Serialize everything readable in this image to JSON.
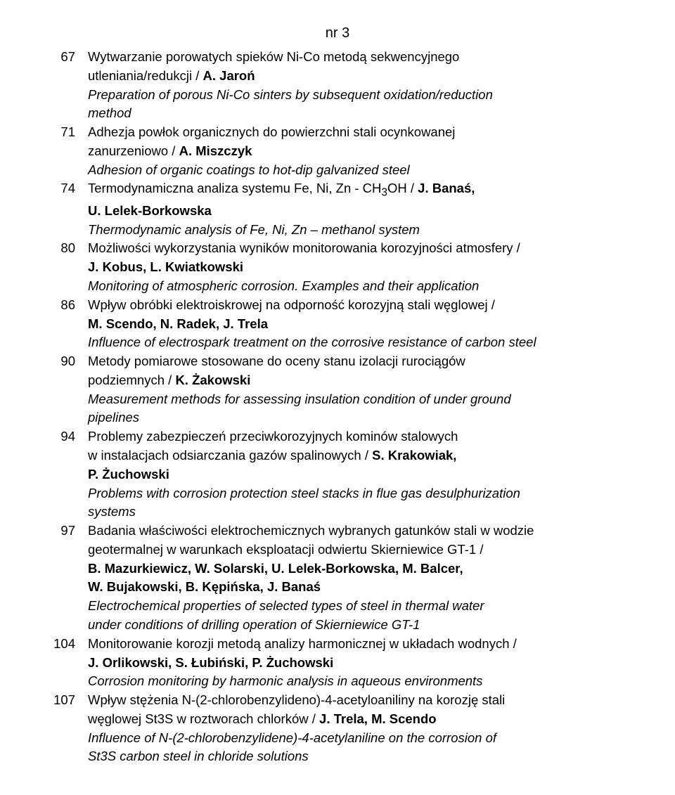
{
  "issue_label": "nr 3",
  "font": {
    "body_size_pt": 14,
    "title_size_pt": 15,
    "line_height": 1.34,
    "color_text": "#000000",
    "color_bg": "#ffffff"
  },
  "entries": [
    {
      "page": "67",
      "lines": [
        [
          {
            "t": "Wytwarzanie porowatych spieków Ni-Co metodą sekwencyjnego"
          }
        ],
        [
          {
            "t": "utleniania/redukcji / "
          },
          {
            "t": "A. Jaroń",
            "b": true
          }
        ],
        [
          {
            "t": "Preparation of porous Ni-Co sinters by subsequent oxidation/reduction",
            "i": true
          }
        ],
        [
          {
            "t": "method",
            "i": true
          }
        ]
      ]
    },
    {
      "page": "71",
      "lines": [
        [
          {
            "t": "Adhezja powłok organicznych do powierzchni stali ocynkowanej"
          }
        ],
        [
          {
            "t": "zanurzeniowo / "
          },
          {
            "t": "A. Miszczyk",
            "b": true
          }
        ],
        [
          {
            "t": "Adhesion of organic coatings to hot-dip galvanized steel",
            "i": true
          }
        ]
      ]
    },
    {
      "page": "74",
      "lines": [
        [
          {
            "t": "Termodynamiczna analiza systemu Fe, Ni, Zn - CH"
          },
          {
            "t": "3",
            "sub": true
          },
          {
            "t": "OH / "
          },
          {
            "t": "J. Banaś,",
            "b": true
          }
        ],
        [
          {
            "t": "U. Lelek-Borkowska",
            "b": true
          }
        ],
        [
          {
            "t": "Thermodynamic analysis of Fe, Ni, Zn – methanol system",
            "i": true
          }
        ]
      ]
    },
    {
      "page": "80",
      "lines": [
        [
          {
            "t": "Możliwości wykorzystania wyników monitorowania korozyjności atmosfery /"
          }
        ],
        [
          {
            "t": "J. Kobus, L. Kwiatkowski",
            "b": true
          }
        ],
        [
          {
            "t": "Monitoring of atmospheric corrosion. Examples and their application",
            "i": true
          }
        ]
      ]
    },
    {
      "page": "86",
      "lines": [
        [
          {
            "t": "Wpływ obróbki elektroiskrowej na odporność korozyjną stali węglowej /"
          }
        ],
        [
          {
            "t": "M. Scendo, N. Radek, J. Trela",
            "b": true
          }
        ],
        [
          {
            "t": "Influence of electrospark treatment on the corrosive resistance of carbon steel",
            "i": true
          }
        ]
      ]
    },
    {
      "page": "90",
      "lines": [
        [
          {
            "t": "Metody pomiarowe stosowane do oceny stanu izolacji rurociągów"
          }
        ],
        [
          {
            "t": "podziemnych / "
          },
          {
            "t": "K. Żakowski",
            "b": true
          }
        ],
        [
          {
            "t": "Measurement methods for assessing insulation condition of under ground",
            "i": true
          }
        ],
        [
          {
            "t": "pipelines",
            "i": true
          }
        ]
      ]
    },
    {
      "page": "94",
      "lines": [
        [
          {
            "t": "Problemy zabezpieczeń przeciwkorozyjnych kominów stalowych"
          }
        ],
        [
          {
            "t": "w instalacjach odsiarczania gazów spalinowych / "
          },
          {
            "t": "S. Krakowiak,",
            "b": true
          }
        ],
        [
          {
            "t": "P. Żuchowski",
            "b": true
          }
        ],
        [
          {
            "t": "Problems with corrosion protection steel stacks in flue gas desulphurization",
            "i": true
          }
        ],
        [
          {
            "t": "systems",
            "i": true
          }
        ]
      ]
    },
    {
      "page": "97",
      "lines": [
        [
          {
            "t": "Badania właściwości elektrochemicznych wybranych gatunków stali w wodzie"
          }
        ],
        [
          {
            "t": "geotermalnej w warunkach eksploatacji odwiertu Skierniewice GT-1 /"
          }
        ],
        [
          {
            "t": "B. Mazurkiewicz, W. Solarski, U. Lelek-Borkowska, M. Balcer,",
            "b": true
          }
        ],
        [
          {
            "t": "W. Bujakowski, B. Kępińska, J. Banaś",
            "b": true
          }
        ],
        [
          {
            "t": "Electrochemical properties of selected types of steel in thermal water",
            "i": true
          }
        ],
        [
          {
            "t": "under conditions of drilling operation of Skierniewice GT-1",
            "i": true
          }
        ]
      ]
    },
    {
      "page": "104",
      "lines": [
        [
          {
            "t": "Monitorowanie korozji metodą analizy harmonicznej w układach wodnych /"
          }
        ],
        [
          {
            "t": "J. Orlikowski, S. Łubiński, P. Żuchowski",
            "b": true
          }
        ],
        [
          {
            "t": "Corrosion monitoring by harmonic analysis in aqueous environments",
            "i": true
          }
        ]
      ]
    },
    {
      "page": "107",
      "lines": [
        [
          {
            "t": "Wpływ stężenia N-(2-chlorobenzylideno)-4-acetyloaniliny na korozję stali"
          }
        ],
        [
          {
            "t": "węglowej St3S w roztworach chlorków / "
          },
          {
            "t": "J. Trela, M. Scendo",
            "b": true
          }
        ],
        [
          {
            "t": "Influence of N-(2-chlorobenzylidene)-4-acetylaniline on the corrosion of",
            "i": true
          }
        ],
        [
          {
            "t": "St3S carbon steel in chloride solutions",
            "i": true
          }
        ]
      ]
    }
  ]
}
